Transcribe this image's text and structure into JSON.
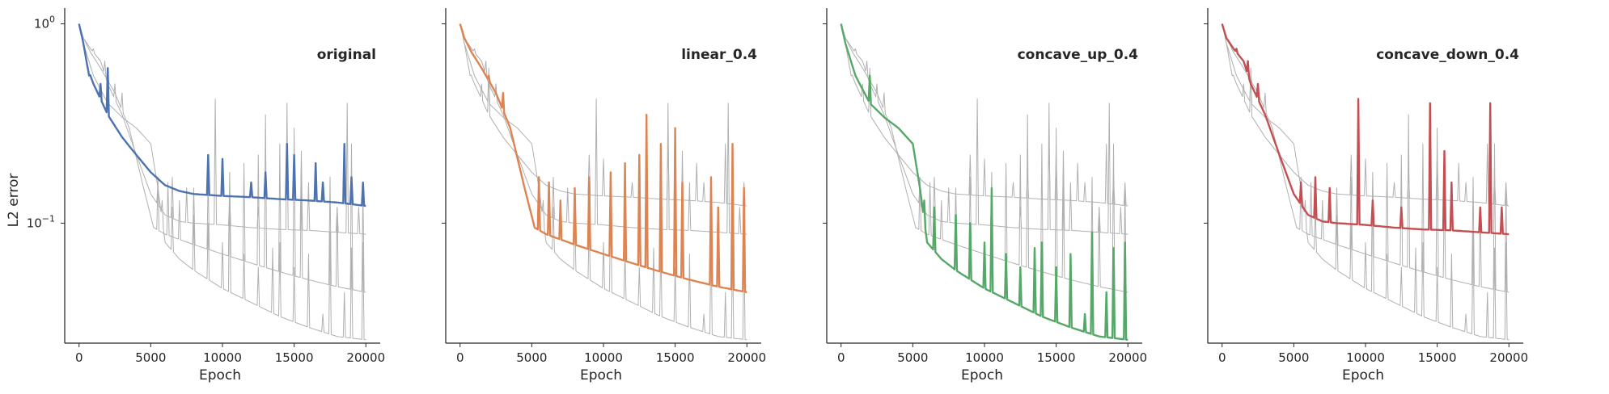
{
  "chart_data": {
    "type": "line",
    "ylabel": "L2 error",
    "yscale": "log",
    "ylim": [
      0.025,
      1.2
    ],
    "y_ticks": [
      {
        "value": 1,
        "base": "10",
        "exp": "0"
      },
      {
        "value": 0.1,
        "base": "10",
        "exp": "−1"
      }
    ],
    "xlabel": "Epoch",
    "xlim": [
      -1000,
      21000
    ],
    "x_ticks": [
      0,
      5000,
      10000,
      15000,
      20000
    ],
    "grid": false,
    "background_series_color": "#b0b0b0",
    "panels": [
      {
        "title": "original",
        "color": "#4c72b0",
        "series": "original"
      },
      {
        "title": "linear_0.4",
        "color": "#dd8452",
        "series": "linear_0.4"
      },
      {
        "title": "concave_up_0.4",
        "color": "#55a868",
        "series": "concave_up_0.4"
      },
      {
        "title": "concave_down_0.4",
        "color": "#c44e52",
        "series": "concave_down_0.4"
      }
    ],
    "series": [
      {
        "name": "original",
        "baseline": [
          [
            0,
            1.0
          ],
          [
            300,
            0.8
          ],
          [
            600,
            0.6
          ],
          [
            1000,
            0.5
          ],
          [
            1500,
            0.42
          ],
          [
            2000,
            0.35
          ],
          [
            3000,
            0.27
          ],
          [
            4000,
            0.22
          ],
          [
            5000,
            0.18
          ],
          [
            6000,
            0.155
          ],
          [
            7000,
            0.145
          ],
          [
            8000,
            0.14
          ],
          [
            10000,
            0.137
          ],
          [
            12000,
            0.135
          ],
          [
            14000,
            0.132
          ],
          [
            16000,
            0.13
          ],
          [
            18000,
            0.127
          ],
          [
            20000,
            0.122
          ]
        ],
        "spikes": [
          [
            700,
            0.55
          ],
          [
            1500,
            0.5
          ],
          [
            2000,
            0.6
          ],
          [
            9000,
            0.22
          ],
          [
            10000,
            0.21
          ],
          [
            12000,
            0.16
          ],
          [
            13000,
            0.18
          ],
          [
            14500,
            0.25
          ],
          [
            15000,
            0.22
          ],
          [
            16500,
            0.2
          ],
          [
            17000,
            0.16
          ],
          [
            18500,
            0.25
          ],
          [
            19000,
            0.17
          ],
          [
            19800,
            0.16
          ]
        ]
      },
      {
        "name": "linear_0.4",
        "baseline": [
          [
            0,
            1.0
          ],
          [
            300,
            0.85
          ],
          [
            800,
            0.72
          ],
          [
            1500,
            0.6
          ],
          [
            2500,
            0.45
          ],
          [
            3500,
            0.3
          ],
          [
            4500,
            0.15
          ],
          [
            5200,
            0.095
          ],
          [
            6000,
            0.088
          ],
          [
            8000,
            0.078
          ],
          [
            10000,
            0.07
          ],
          [
            12000,
            0.063
          ],
          [
            14000,
            0.057
          ],
          [
            16000,
            0.052
          ],
          [
            18000,
            0.048
          ],
          [
            20000,
            0.045
          ]
        ],
        "spikes": [
          [
            2000,
            0.55
          ],
          [
            3000,
            0.45
          ],
          [
            5500,
            0.17
          ],
          [
            6200,
            0.16
          ],
          [
            7000,
            0.13
          ],
          [
            8000,
            0.15
          ],
          [
            9000,
            0.17
          ],
          [
            10500,
            0.18
          ],
          [
            11500,
            0.2
          ],
          [
            12500,
            0.22
          ],
          [
            13000,
            0.35
          ],
          [
            14000,
            0.25
          ],
          [
            15000,
            0.3
          ],
          [
            15500,
            0.16
          ],
          [
            17500,
            0.17
          ],
          [
            18000,
            0.12
          ],
          [
            19000,
            0.25
          ],
          [
            19800,
            0.15
          ]
        ]
      },
      {
        "name": "concave_up_0.4",
        "baseline": [
          [
            0,
            1.0
          ],
          [
            300,
            0.8
          ],
          [
            1000,
            0.55
          ],
          [
            2000,
            0.4
          ],
          [
            3000,
            0.34
          ],
          [
            4000,
            0.3
          ],
          [
            5000,
            0.25
          ],
          [
            5500,
            0.15
          ],
          [
            6000,
            0.08
          ],
          [
            7000,
            0.066
          ],
          [
            8000,
            0.058
          ],
          [
            10000,
            0.047
          ],
          [
            12000,
            0.04
          ],
          [
            14000,
            0.034
          ],
          [
            16000,
            0.03
          ],
          [
            18000,
            0.027
          ],
          [
            20000,
            0.026
          ]
        ],
        "spikes": [
          [
            2000,
            0.55
          ],
          [
            5800,
            0.13
          ],
          [
            6500,
            0.12
          ],
          [
            8000,
            0.11
          ],
          [
            9000,
            0.1
          ],
          [
            10000,
            0.08
          ],
          [
            10500,
            0.15
          ],
          [
            11500,
            0.07
          ],
          [
            12500,
            0.06
          ],
          [
            13500,
            0.075
          ],
          [
            14000,
            0.08
          ],
          [
            15000,
            0.06
          ],
          [
            16000,
            0.07
          ],
          [
            17000,
            0.035
          ],
          [
            17500,
            0.09
          ],
          [
            18500,
            0.045
          ],
          [
            19000,
            0.075
          ],
          [
            19800,
            0.08
          ]
        ]
      },
      {
        "name": "concave_down_0.4",
        "baseline": [
          [
            0,
            1.0
          ],
          [
            300,
            0.85
          ],
          [
            800,
            0.75
          ],
          [
            1500,
            0.65
          ],
          [
            2000,
            0.5
          ],
          [
            3000,
            0.35
          ],
          [
            4000,
            0.22
          ],
          [
            5000,
            0.14
          ],
          [
            6000,
            0.11
          ],
          [
            7000,
            0.102
          ],
          [
            8000,
            0.1
          ],
          [
            10000,
            0.098
          ],
          [
            12000,
            0.095
          ],
          [
            14000,
            0.093
          ],
          [
            16000,
            0.092
          ],
          [
            18000,
            0.09
          ],
          [
            20000,
            0.088
          ]
        ],
        "spikes": [
          [
            1000,
            0.75
          ],
          [
            1800,
            0.65
          ],
          [
            2500,
            0.5
          ],
          [
            5500,
            0.16
          ],
          [
            6500,
            0.17
          ],
          [
            7500,
            0.15
          ],
          [
            9500,
            0.42
          ],
          [
            10500,
            0.13
          ],
          [
            12500,
            0.12
          ],
          [
            14500,
            0.4
          ],
          [
            15500,
            0.23
          ],
          [
            16000,
            0.16
          ],
          [
            18000,
            0.12
          ],
          [
            18700,
            0.4
          ],
          [
            19500,
            0.12
          ]
        ]
      }
    ]
  }
}
